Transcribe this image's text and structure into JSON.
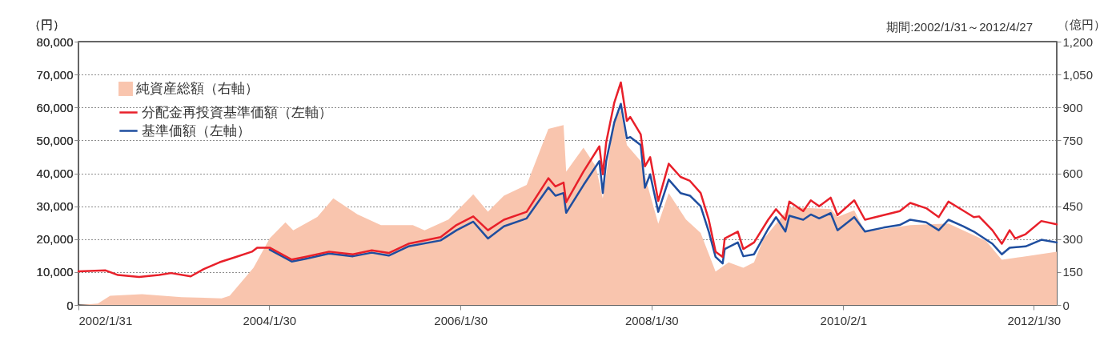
{
  "chart_data": {
    "type": "line",
    "ylabel": "（円）",
    "y2label": "（億円）",
    "annotations": [
      "期間:2002/1/31～2012/4/27"
    ],
    "xlim": [
      "2002-01-31",
      "2012-04-27"
    ],
    "xticks": [
      {
        "value": "2002-01-31",
        "label": "2002/1/31"
      },
      {
        "value": "2004-01-30",
        "label": "2004/1/30"
      },
      {
        "value": "2006-01-30",
        "label": "2006/1/30"
      },
      {
        "value": "2008-01-30",
        "label": "2008/1/30"
      },
      {
        "value": "2010-02-01",
        "label": "2010/2/1"
      },
      {
        "value": "2012-01-30",
        "label": "2012/1/30"
      }
    ],
    "ylim": [
      0,
      80000
    ],
    "yticks": [
      {
        "value": 0,
        "label": "0"
      },
      {
        "value": 10000,
        "label": "10,000"
      },
      {
        "value": 20000,
        "label": "20,000"
      },
      {
        "value": 30000,
        "label": "30,000"
      },
      {
        "value": 40000,
        "label": "40,000"
      },
      {
        "value": 50000,
        "label": "50,000"
      },
      {
        "value": 60000,
        "label": "60,000"
      },
      {
        "value": 70000,
        "label": "70,000"
      },
      {
        "value": 80000,
        "label": "80,000"
      }
    ],
    "y2lim": [
      0,
      1200
    ],
    "y2ticks": [
      {
        "value": 0,
        "label": "0"
      },
      {
        "value": 150,
        "label": "150"
      },
      {
        "value": 300,
        "label": "300"
      },
      {
        "value": 450,
        "label": "450"
      },
      {
        "value": 600,
        "label": "600"
      },
      {
        "value": 750,
        "label": "750"
      },
      {
        "value": 900,
        "label": "900"
      },
      {
        "value": 1050,
        "label": "1,050"
      },
      {
        "value": 1200,
        "label": "1,200"
      }
    ],
    "grid": "y",
    "legend": "top left",
    "series": [
      {
        "name": "純資産総額（右軸）",
        "type": "area",
        "axis": "y2",
        "color": "#f9c5ae",
        "x": [
          "2002-01-31",
          "2002-04-15",
          "2002-06-01",
          "2002-10-01",
          "2003-03-01",
          "2003-08-01",
          "2003-09-01",
          "2003-12-01",
          "2004-02-01",
          "2004-04-01",
          "2004-05-01",
          "2004-08-01",
          "2004-10-01",
          "2005-01-01",
          "2005-04-01",
          "2005-08-01",
          "2005-09-15",
          "2005-12-15",
          "2006-03-20",
          "2006-05-15",
          "2006-07-15",
          "2006-10-10",
          "2007-01-01",
          "2007-02-28",
          "2007-03-10",
          "2007-05-15",
          "2007-07-01",
          "2007-07-28",
          "2007-09-10",
          "2007-10-05",
          "2007-10-28",
          "2007-12-20",
          "2008-02-25",
          "2008-04-05",
          "2008-06-10",
          "2008-08-05",
          "2008-10-01",
          "2008-11-20",
          "2009-01-15",
          "2009-02-25",
          "2009-04-01",
          "2009-07-10",
          "2009-12-15",
          "2010-01-10",
          "2010-03-15",
          "2010-04-25",
          "2010-10-15",
          "2011-03-10",
          "2011-08-01",
          "2011-09-30",
          "2011-12-15",
          "2012-04-27"
        ],
        "values": [
          0,
          6,
          42,
          49,
          36,
          30,
          42,
          170,
          304,
          377,
          340,
          401,
          486,
          413,
          364,
          364,
          340,
          389,
          504,
          425,
          498,
          547,
          802,
          820,
          607,
          717,
          632,
          486,
          850,
          887,
          729,
          656,
          370,
          510,
          389,
          328,
          152,
          194,
          170,
          194,
          298,
          445,
          437,
          401,
          431,
          334,
          364,
          371,
          292,
          206,
          219,
          243
        ]
      },
      {
        "name": "分配金再投資基準価額（左軸）",
        "color": "#e8202a",
        "x": [
          "2002-01-31",
          "2002-05-15",
          "2002-07-01",
          "2002-09-20",
          "2002-12-05",
          "2003-01-20",
          "2003-04-05",
          "2003-05-25",
          "2003-07-25",
          "2003-09-25",
          "2003-11-25",
          "2003-12-15",
          "2004-02-01",
          "2004-04-25",
          "2004-06-15",
          "2004-09-15",
          "2004-12-15",
          "2005-02-25",
          "2005-05-01",
          "2005-07-15",
          "2005-11-15",
          "2006-01-15",
          "2006-03-20",
          "2006-05-15",
          "2006-07-15",
          "2006-10-10",
          "2007-01-01",
          "2007-01-28",
          "2007-02-28",
          "2007-03-10",
          "2007-05-15",
          "2007-07-15",
          "2007-07-28",
          "2007-08-10",
          "2007-09-10",
          "2007-10-05",
          "2007-10-28",
          "2007-11-10",
          "2007-12-20",
          "2008-01-05",
          "2008-01-25",
          "2008-02-25",
          "2008-04-05",
          "2008-05-20",
          "2008-06-25",
          "2008-08-05",
          "2008-09-05",
          "2008-10-01",
          "2008-10-28",
          "2008-11-05",
          "2008-12-25",
          "2009-01-15",
          "2009-02-25",
          "2009-04-20",
          "2009-05-20",
          "2009-06-25",
          "2009-07-10",
          "2009-09-01",
          "2009-09-30",
          "2009-11-01",
          "2009-12-15",
          "2010-01-10",
          "2010-03-15",
          "2010-04-25",
          "2010-07-05",
          "2010-09-05",
          "2010-10-15",
          "2010-12-15",
          "2011-02-01",
          "2011-03-10",
          "2011-05-05",
          "2011-06-15",
          "2011-07-05",
          "2011-08-25",
          "2011-09-30",
          "2011-10-30",
          "2011-11-20",
          "2011-12-30",
          "2012-02-28",
          "2012-04-27"
        ],
        "values": [
          10200,
          10500,
          9100,
          8500,
          9100,
          9700,
          8700,
          10900,
          13000,
          14600,
          16200,
          17400,
          17400,
          13800,
          14600,
          16200,
          15400,
          16600,
          15800,
          18600,
          20600,
          24300,
          26900,
          22700,
          25900,
          28300,
          38500,
          36000,
          37200,
          31200,
          40500,
          48200,
          39700,
          49400,
          61500,
          67600,
          55900,
          57100,
          51800,
          42100,
          44900,
          31600,
          42900,
          38900,
          37700,
          34000,
          25900,
          16200,
          14600,
          20200,
          22300,
          17000,
          19000,
          25900,
          29100,
          25900,
          31400,
          28500,
          31800,
          30000,
          32600,
          27300,
          31800,
          25900,
          27300,
          28500,
          31000,
          29400,
          26700,
          31400,
          28700,
          26700,
          26900,
          22700,
          18600,
          22700,
          20200,
          21500,
          25500,
          24500
        ]
      },
      {
        "name": "基準価額（左軸）",
        "color": "#1f4e9f",
        "x": [
          "2004-02-01",
          "2004-04-25",
          "2004-06-15",
          "2004-09-15",
          "2004-12-15",
          "2005-02-25",
          "2005-05-01",
          "2005-07-15",
          "2005-11-15",
          "2006-01-15",
          "2006-03-20",
          "2006-05-15",
          "2006-07-15",
          "2006-10-10",
          "2007-01-01",
          "2007-01-28",
          "2007-02-28",
          "2007-03-10",
          "2007-05-15",
          "2007-07-15",
          "2007-07-28",
          "2007-08-10",
          "2007-09-10",
          "2007-10-05",
          "2007-10-28",
          "2007-11-10",
          "2007-12-20",
          "2008-01-05",
          "2008-01-25",
          "2008-02-25",
          "2008-04-05",
          "2008-05-20",
          "2008-06-25",
          "2008-08-05",
          "2008-09-05",
          "2008-10-01",
          "2008-10-28",
          "2008-11-05",
          "2008-12-25",
          "2009-01-15",
          "2009-02-25",
          "2009-04-20",
          "2009-05-20",
          "2009-06-25",
          "2009-07-10",
          "2009-09-01",
          "2009-09-30",
          "2009-11-01",
          "2009-12-15",
          "2010-01-10",
          "2010-03-15",
          "2010-04-25",
          "2010-07-05",
          "2010-09-05",
          "2010-10-15",
          "2010-12-15",
          "2011-02-01",
          "2011-03-10",
          "2011-05-05",
          "2011-06-15",
          "2011-08-25",
          "2011-09-30",
          "2011-10-30",
          "2011-12-30",
          "2012-02-28",
          "2012-04-27"
        ],
        "values": [
          16800,
          13200,
          14000,
          15600,
          14800,
          15900,
          15000,
          17800,
          19600,
          22700,
          25300,
          20200,
          23900,
          26300,
          35700,
          33200,
          34000,
          28000,
          36400,
          43700,
          34000,
          43700,
          55500,
          61100,
          50600,
          51000,
          48600,
          35600,
          39700,
          28300,
          38100,
          34000,
          33200,
          30000,
          22300,
          14600,
          12600,
          17000,
          19000,
          14800,
          15400,
          23100,
          26700,
          22300,
          27100,
          25900,
          27500,
          26300,
          27900,
          22700,
          26700,
          22300,
          23500,
          24300,
          25900,
          25100,
          22700,
          25900,
          23900,
          22300,
          18600,
          15400,
          17400,
          17800,
          19800,
          19000
        ]
      }
    ]
  }
}
